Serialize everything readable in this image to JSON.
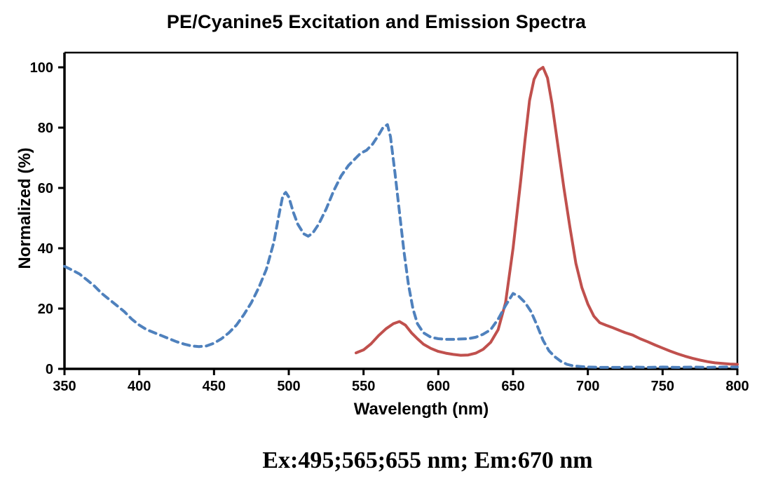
{
  "caption": {
    "text": "Ex:495;565;655 nm; Em:670 nm"
  },
  "chart_data": {
    "type": "line",
    "title": "PE/Cyanine5 Excitation and Emission Spectra",
    "xlabel": "Wavelength (nm)",
    "ylabel": "Normalized (%)",
    "xlim": [
      350,
      800
    ],
    "ylim": [
      0,
      100
    ],
    "x_ticks": [
      350,
      400,
      450,
      500,
      550,
      600,
      650,
      700,
      750,
      800
    ],
    "y_ticks": [
      0,
      20,
      40,
      60,
      80,
      100
    ],
    "grid": false,
    "legend_position": "none",
    "axis_color": "#000000",
    "background_color": "#ffffff",
    "series": [
      {
        "name": "Emission",
        "style": "solid",
        "color": "#C0504D",
        "peak_nm": 670,
        "points": [
          [
            545,
            5.3
          ],
          [
            550,
            6.3
          ],
          [
            555,
            8.3
          ],
          [
            560,
            11
          ],
          [
            565,
            13.3
          ],
          [
            570,
            15
          ],
          [
            574,
            15.7
          ],
          [
            578,
            14.5
          ],
          [
            582,
            12
          ],
          [
            586,
            10
          ],
          [
            590,
            8.2
          ],
          [
            595,
            6.8
          ],
          [
            600,
            5.8
          ],
          [
            605,
            5.2
          ],
          [
            610,
            4.8
          ],
          [
            615,
            4.5
          ],
          [
            620,
            4.6
          ],
          [
            625,
            5.2
          ],
          [
            630,
            6.5
          ],
          [
            635,
            8.8
          ],
          [
            640,
            13
          ],
          [
            645,
            22
          ],
          [
            650,
            40
          ],
          [
            655,
            62
          ],
          [
            658,
            76
          ],
          [
            661,
            89
          ],
          [
            664,
            96
          ],
          [
            667,
            99
          ],
          [
            670,
            100
          ],
          [
            673,
            96.5
          ],
          [
            676,
            88
          ],
          [
            680,
            74
          ],
          [
            684,
            60
          ],
          [
            688,
            47
          ],
          [
            692,
            35
          ],
          [
            696,
            27
          ],
          [
            700,
            21.5
          ],
          [
            704,
            17.5
          ],
          [
            708,
            15.3
          ],
          [
            712,
            14.5
          ],
          [
            716,
            13.8
          ],
          [
            720,
            13
          ],
          [
            725,
            12
          ],
          [
            730,
            11.2
          ],
          [
            735,
            10
          ],
          [
            740,
            9
          ],
          [
            745,
            7.9
          ],
          [
            750,
            6.9
          ],
          [
            755,
            5.9
          ],
          [
            760,
            5
          ],
          [
            765,
            4.2
          ],
          [
            770,
            3.5
          ],
          [
            775,
            2.9
          ],
          [
            780,
            2.4
          ],
          [
            785,
            2
          ],
          [
            790,
            1.8
          ],
          [
            795,
            1.6
          ],
          [
            800,
            1.5
          ]
        ]
      },
      {
        "name": "Excitation",
        "style": "dashed",
        "color": "#4F81BD",
        "peaks_nm": [
          495,
          565,
          655
        ],
        "points": [
          [
            350,
            34
          ],
          [
            355,
            32.8
          ],
          [
            360,
            31.5
          ],
          [
            365,
            29.5
          ],
          [
            370,
            27.5
          ],
          [
            375,
            25
          ],
          [
            380,
            23
          ],
          [
            385,
            21
          ],
          [
            390,
            19
          ],
          [
            395,
            16.5
          ],
          [
            400,
            14.5
          ],
          [
            405,
            13
          ],
          [
            410,
            12
          ],
          [
            415,
            11
          ],
          [
            420,
            10
          ],
          [
            425,
            9
          ],
          [
            430,
            8.2
          ],
          [
            435,
            7.6
          ],
          [
            440,
            7.4
          ],
          [
            445,
            7.6
          ],
          [
            450,
            8.5
          ],
          [
            455,
            10
          ],
          [
            460,
            12
          ],
          [
            465,
            14.5
          ],
          [
            470,
            18
          ],
          [
            475,
            22
          ],
          [
            480,
            27
          ],
          [
            485,
            33
          ],
          [
            490,
            42
          ],
          [
            493,
            50
          ],
          [
            496,
            57.5
          ],
          [
            498,
            58.5
          ],
          [
            500,
            57
          ],
          [
            503,
            52
          ],
          [
            506,
            48
          ],
          [
            510,
            44.8
          ],
          [
            513,
            44
          ],
          [
            516,
            45
          ],
          [
            520,
            48
          ],
          [
            525,
            53
          ],
          [
            530,
            59
          ],
          [
            535,
            64
          ],
          [
            540,
            67.5
          ],
          [
            545,
            70
          ],
          [
            548,
            71.5
          ],
          [
            552,
            72.5
          ],
          [
            556,
            74.5
          ],
          [
            560,
            77.5
          ],
          [
            563,
            80
          ],
          [
            566,
            81
          ],
          [
            568,
            77
          ],
          [
            571,
            65
          ],
          [
            574,
            52
          ],
          [
            577,
            39
          ],
          [
            580,
            28
          ],
          [
            583,
            20
          ],
          [
            586,
            15
          ],
          [
            590,
            12
          ],
          [
            595,
            10.5
          ],
          [
            600,
            10
          ],
          [
            605,
            9.8
          ],
          [
            610,
            9.8
          ],
          [
            615,
            9.9
          ],
          [
            620,
            10
          ],
          [
            625,
            10.5
          ],
          [
            630,
            11.5
          ],
          [
            635,
            13
          ],
          [
            640,
            16.5
          ],
          [
            645,
            21
          ],
          [
            650,
            25
          ],
          [
            654,
            24
          ],
          [
            658,
            22
          ],
          [
            662,
            19
          ],
          [
            666,
            14.5
          ],
          [
            670,
            9.5
          ],
          [
            674,
            6
          ],
          [
            678,
            4
          ],
          [
            682,
            2.5
          ],
          [
            686,
            1.5
          ],
          [
            690,
            1
          ],
          [
            695,
            0.8
          ],
          [
            700,
            0.6
          ],
          [
            710,
            0.5
          ],
          [
            720,
            0.5
          ],
          [
            730,
            0.6
          ],
          [
            740,
            0.5
          ],
          [
            750,
            0.6
          ],
          [
            760,
            0.5
          ],
          [
            770,
            0.6
          ],
          [
            780,
            0.5
          ],
          [
            790,
            0.6
          ],
          [
            800,
            0.6
          ]
        ]
      }
    ]
  }
}
